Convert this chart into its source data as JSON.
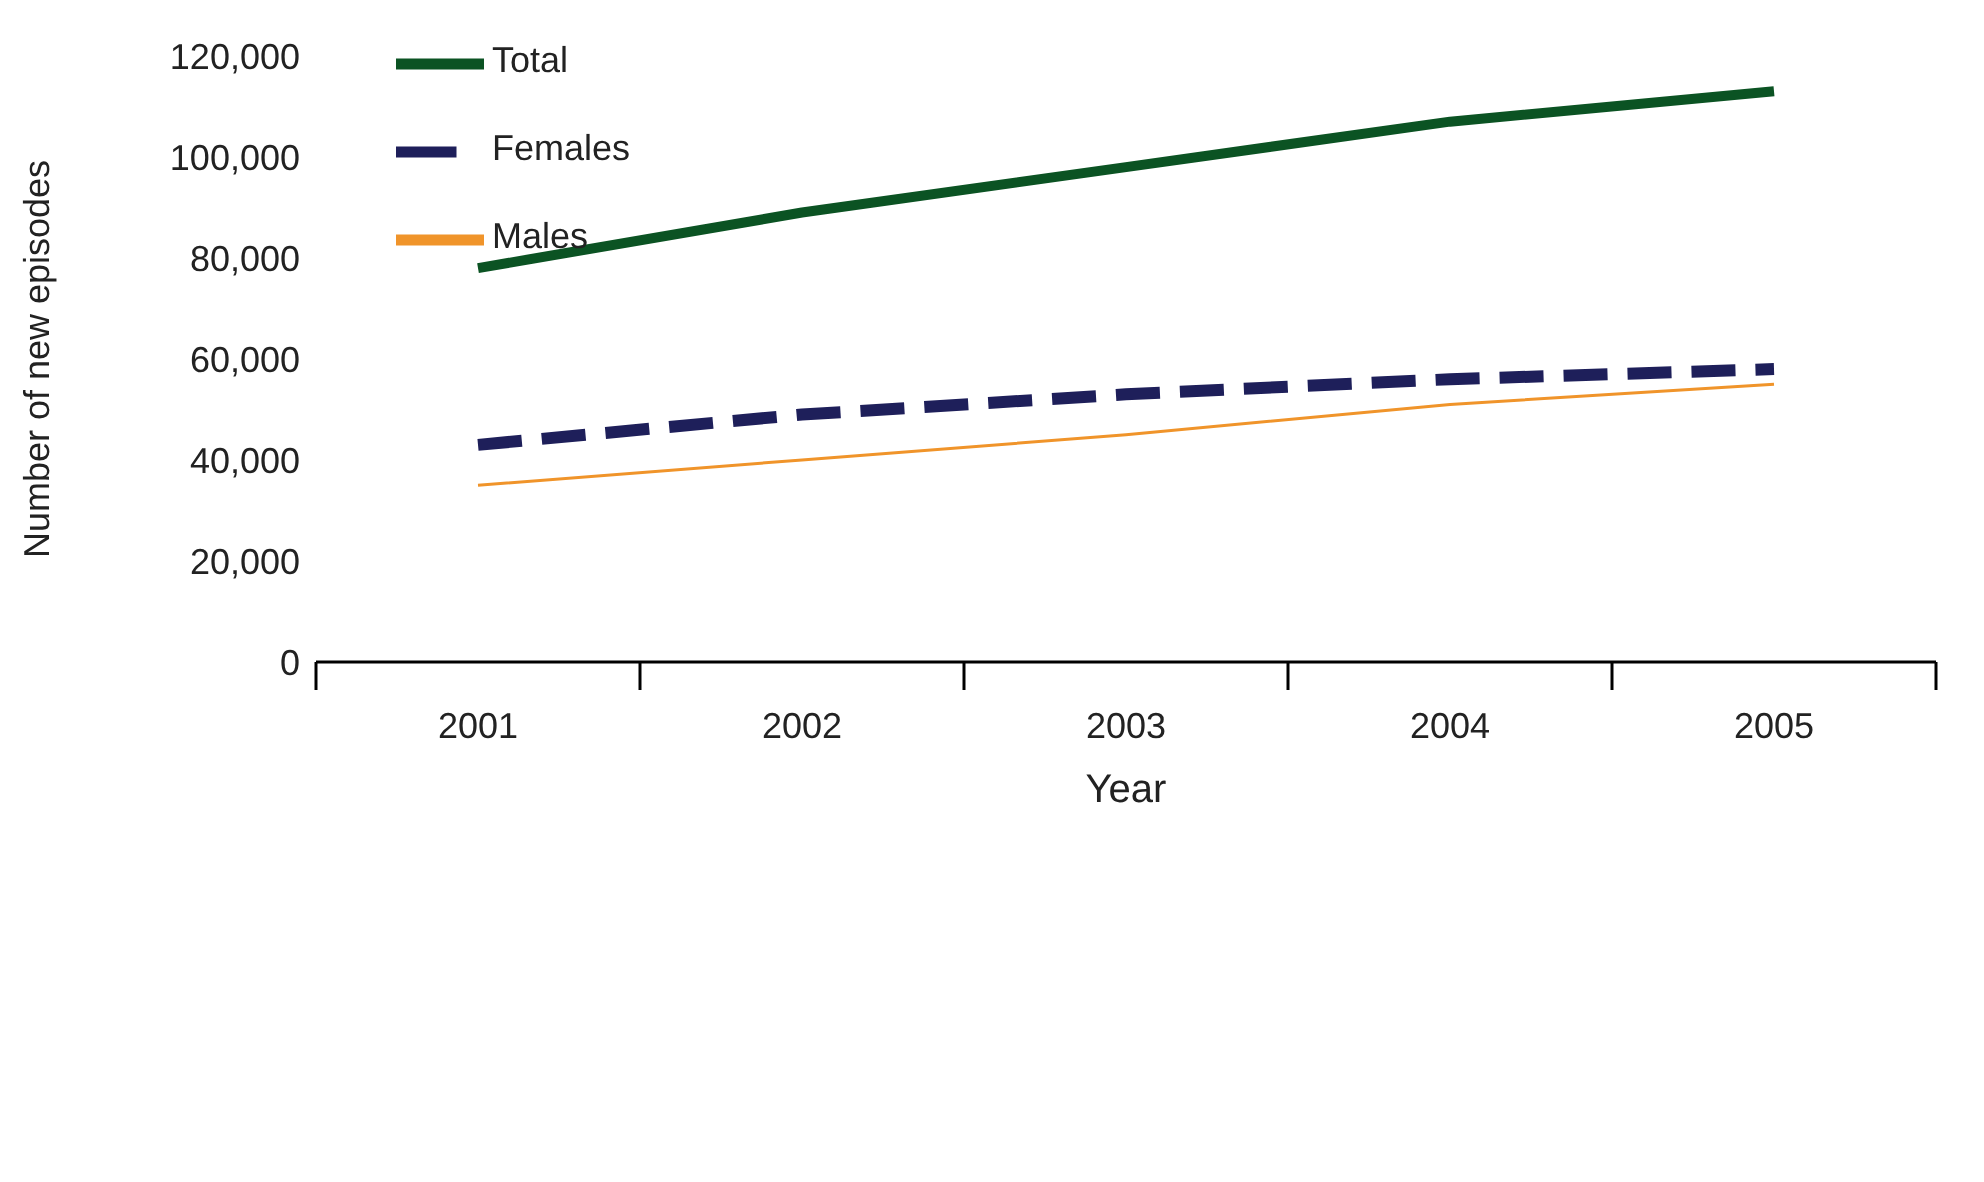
{
  "chart_data": {
    "type": "line",
    "xlabel": "Year",
    "ylabel": "Number of new episodes",
    "categories": [
      "2001",
      "2002",
      "2003",
      "2004",
      "2005"
    ],
    "series": [
      {
        "name": "Total",
        "color": "#0b5323",
        "line_style": "solid",
        "values": [
          78000,
          89000,
          98000,
          107000,
          113000
        ]
      },
      {
        "name": "Females",
        "color": "#1e1f5a",
        "line_style": "dashed",
        "values": [
          43000,
          49000,
          53000,
          56000,
          58000
        ]
      },
      {
        "name": "Males",
        "color": "#f0942a",
        "line_style": "solid",
        "values": [
          35000,
          40000,
          45000,
          51000,
          55000
        ]
      }
    ],
    "ylim": [
      0,
      120000
    ],
    "yticks": [
      0,
      {
        "value": 20000,
        "label": "20,000"
      },
      {
        "value": 40000,
        "label": "40,000"
      },
      {
        "value": 60000,
        "label": "60,000"
      },
      {
        "value": 80000,
        "label": "80,000"
      },
      {
        "value": 100000,
        "label": "100,000"
      },
      {
        "value": 120000,
        "label": "120,000"
      }
    ],
    "grid": false,
    "legend": "top left",
    "marker": "none"
  }
}
